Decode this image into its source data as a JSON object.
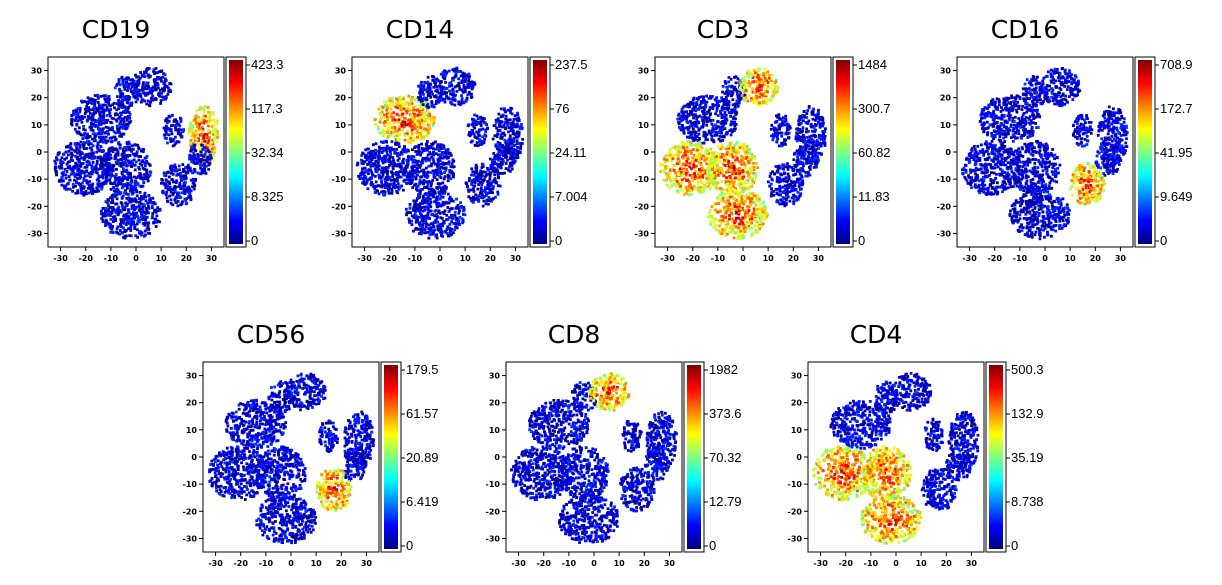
{
  "figure": {
    "axis_ticks": [
      "-30",
      "-20",
      "-10",
      "0",
      "10",
      "20",
      "30"
    ],
    "colormap": [
      "#00007f",
      "#0000ff",
      "#007fff",
      "#00ffff",
      "#7fff7f",
      "#ffff00",
      "#ff7f00",
      "#ff0000",
      "#7f0000"
    ]
  },
  "chart_data": [
    {
      "type": "scatter",
      "title": "CD19",
      "xlim": [
        -35,
        35
      ],
      "ylim": [
        -35,
        35
      ],
      "x_ticks": [
        -30,
        -20,
        -10,
        0,
        10,
        20,
        30
      ],
      "y_ticks": [
        30,
        20,
        10,
        0,
        -10,
        -20,
        -30
      ],
      "colorbar": {
        "labels": [
          "423.3",
          "117.3",
          "32.34",
          "8.325",
          "0"
        ]
      },
      "high_expression_clusters": [
        "bottom-right lobe"
      ]
    },
    {
      "type": "scatter",
      "title": "CD14",
      "xlim": [
        -35,
        35
      ],
      "ylim": [
        -35,
        35
      ],
      "x_ticks": [
        -30,
        -20,
        -10,
        0,
        10,
        20,
        30
      ],
      "y_ticks": [
        30,
        20,
        10,
        0,
        -10,
        -20,
        -30
      ],
      "colorbar": {
        "labels": [
          "237.5",
          "76",
          "24.11",
          "7.004",
          "0"
        ]
      },
      "high_expression_clusters": [
        "top-left lobe"
      ]
    },
    {
      "type": "scatter",
      "title": "CD3",
      "xlim": [
        -35,
        35
      ],
      "ylim": [
        -35,
        35
      ],
      "x_ticks": [
        -30,
        -20,
        -10,
        0,
        10,
        20,
        30
      ],
      "y_ticks": [
        30,
        20,
        10,
        0,
        -10,
        -20,
        -30
      ],
      "colorbar": {
        "labels": [
          "1484",
          "300.7",
          "60.82",
          "11.83",
          "0"
        ]
      },
      "high_expression_clusters": [
        "top-right lobe",
        "center-left",
        "center",
        "bottom lobe"
      ]
    },
    {
      "type": "scatter",
      "title": "CD16",
      "xlim": [
        -35,
        35
      ],
      "ylim": [
        -35,
        35
      ],
      "x_ticks": [
        -30,
        -20,
        -10,
        0,
        10,
        20,
        30
      ],
      "y_ticks": [
        30,
        20,
        10,
        0,
        -10,
        -20,
        -30
      ],
      "colorbar": {
        "labels": [
          "708.9",
          "172.7",
          "41.95",
          "9.649",
          "0"
        ]
      },
      "high_expression_clusters": [
        "lower-right lobe"
      ]
    },
    {
      "type": "scatter",
      "title": "CD56",
      "xlim": [
        -35,
        35
      ],
      "ylim": [
        -35,
        35
      ],
      "x_ticks": [
        -30,
        -20,
        -10,
        0,
        10,
        20,
        30
      ],
      "y_ticks": [
        30,
        20,
        10,
        0,
        -10,
        -20,
        -30
      ],
      "colorbar": {
        "labels": [
          "179.5",
          "61.57",
          "20.89",
          "6.419",
          "0"
        ]
      },
      "high_expression_clusters": [
        "lower-right lobe"
      ]
    },
    {
      "type": "scatter",
      "title": "CD8",
      "xlim": [
        -35,
        35
      ],
      "ylim": [
        -35,
        35
      ],
      "x_ticks": [
        -30,
        -20,
        -10,
        0,
        10,
        20,
        30
      ],
      "y_ticks": [
        30,
        20,
        10,
        0,
        -10,
        -20,
        -30
      ],
      "colorbar": {
        "labels": [
          "1982",
          "373.6",
          "70.32",
          "12.79",
          "0"
        ]
      },
      "high_expression_clusters": [
        "top-right lobe"
      ]
    },
    {
      "type": "scatter",
      "title": "CD4",
      "xlim": [
        -35,
        35
      ],
      "ylim": [
        -35,
        35
      ],
      "x_ticks": [
        -30,
        -20,
        -10,
        0,
        10,
        20,
        30
      ],
      "y_ticks": [
        30,
        20,
        10,
        0,
        -10,
        -20,
        -30
      ],
      "colorbar": {
        "labels": [
          "500.3",
          "132.9",
          "35.19",
          "8.738",
          "0"
        ]
      },
      "high_expression_clusters": [
        "center-left",
        "center",
        "bottom lobe"
      ]
    }
  ]
}
